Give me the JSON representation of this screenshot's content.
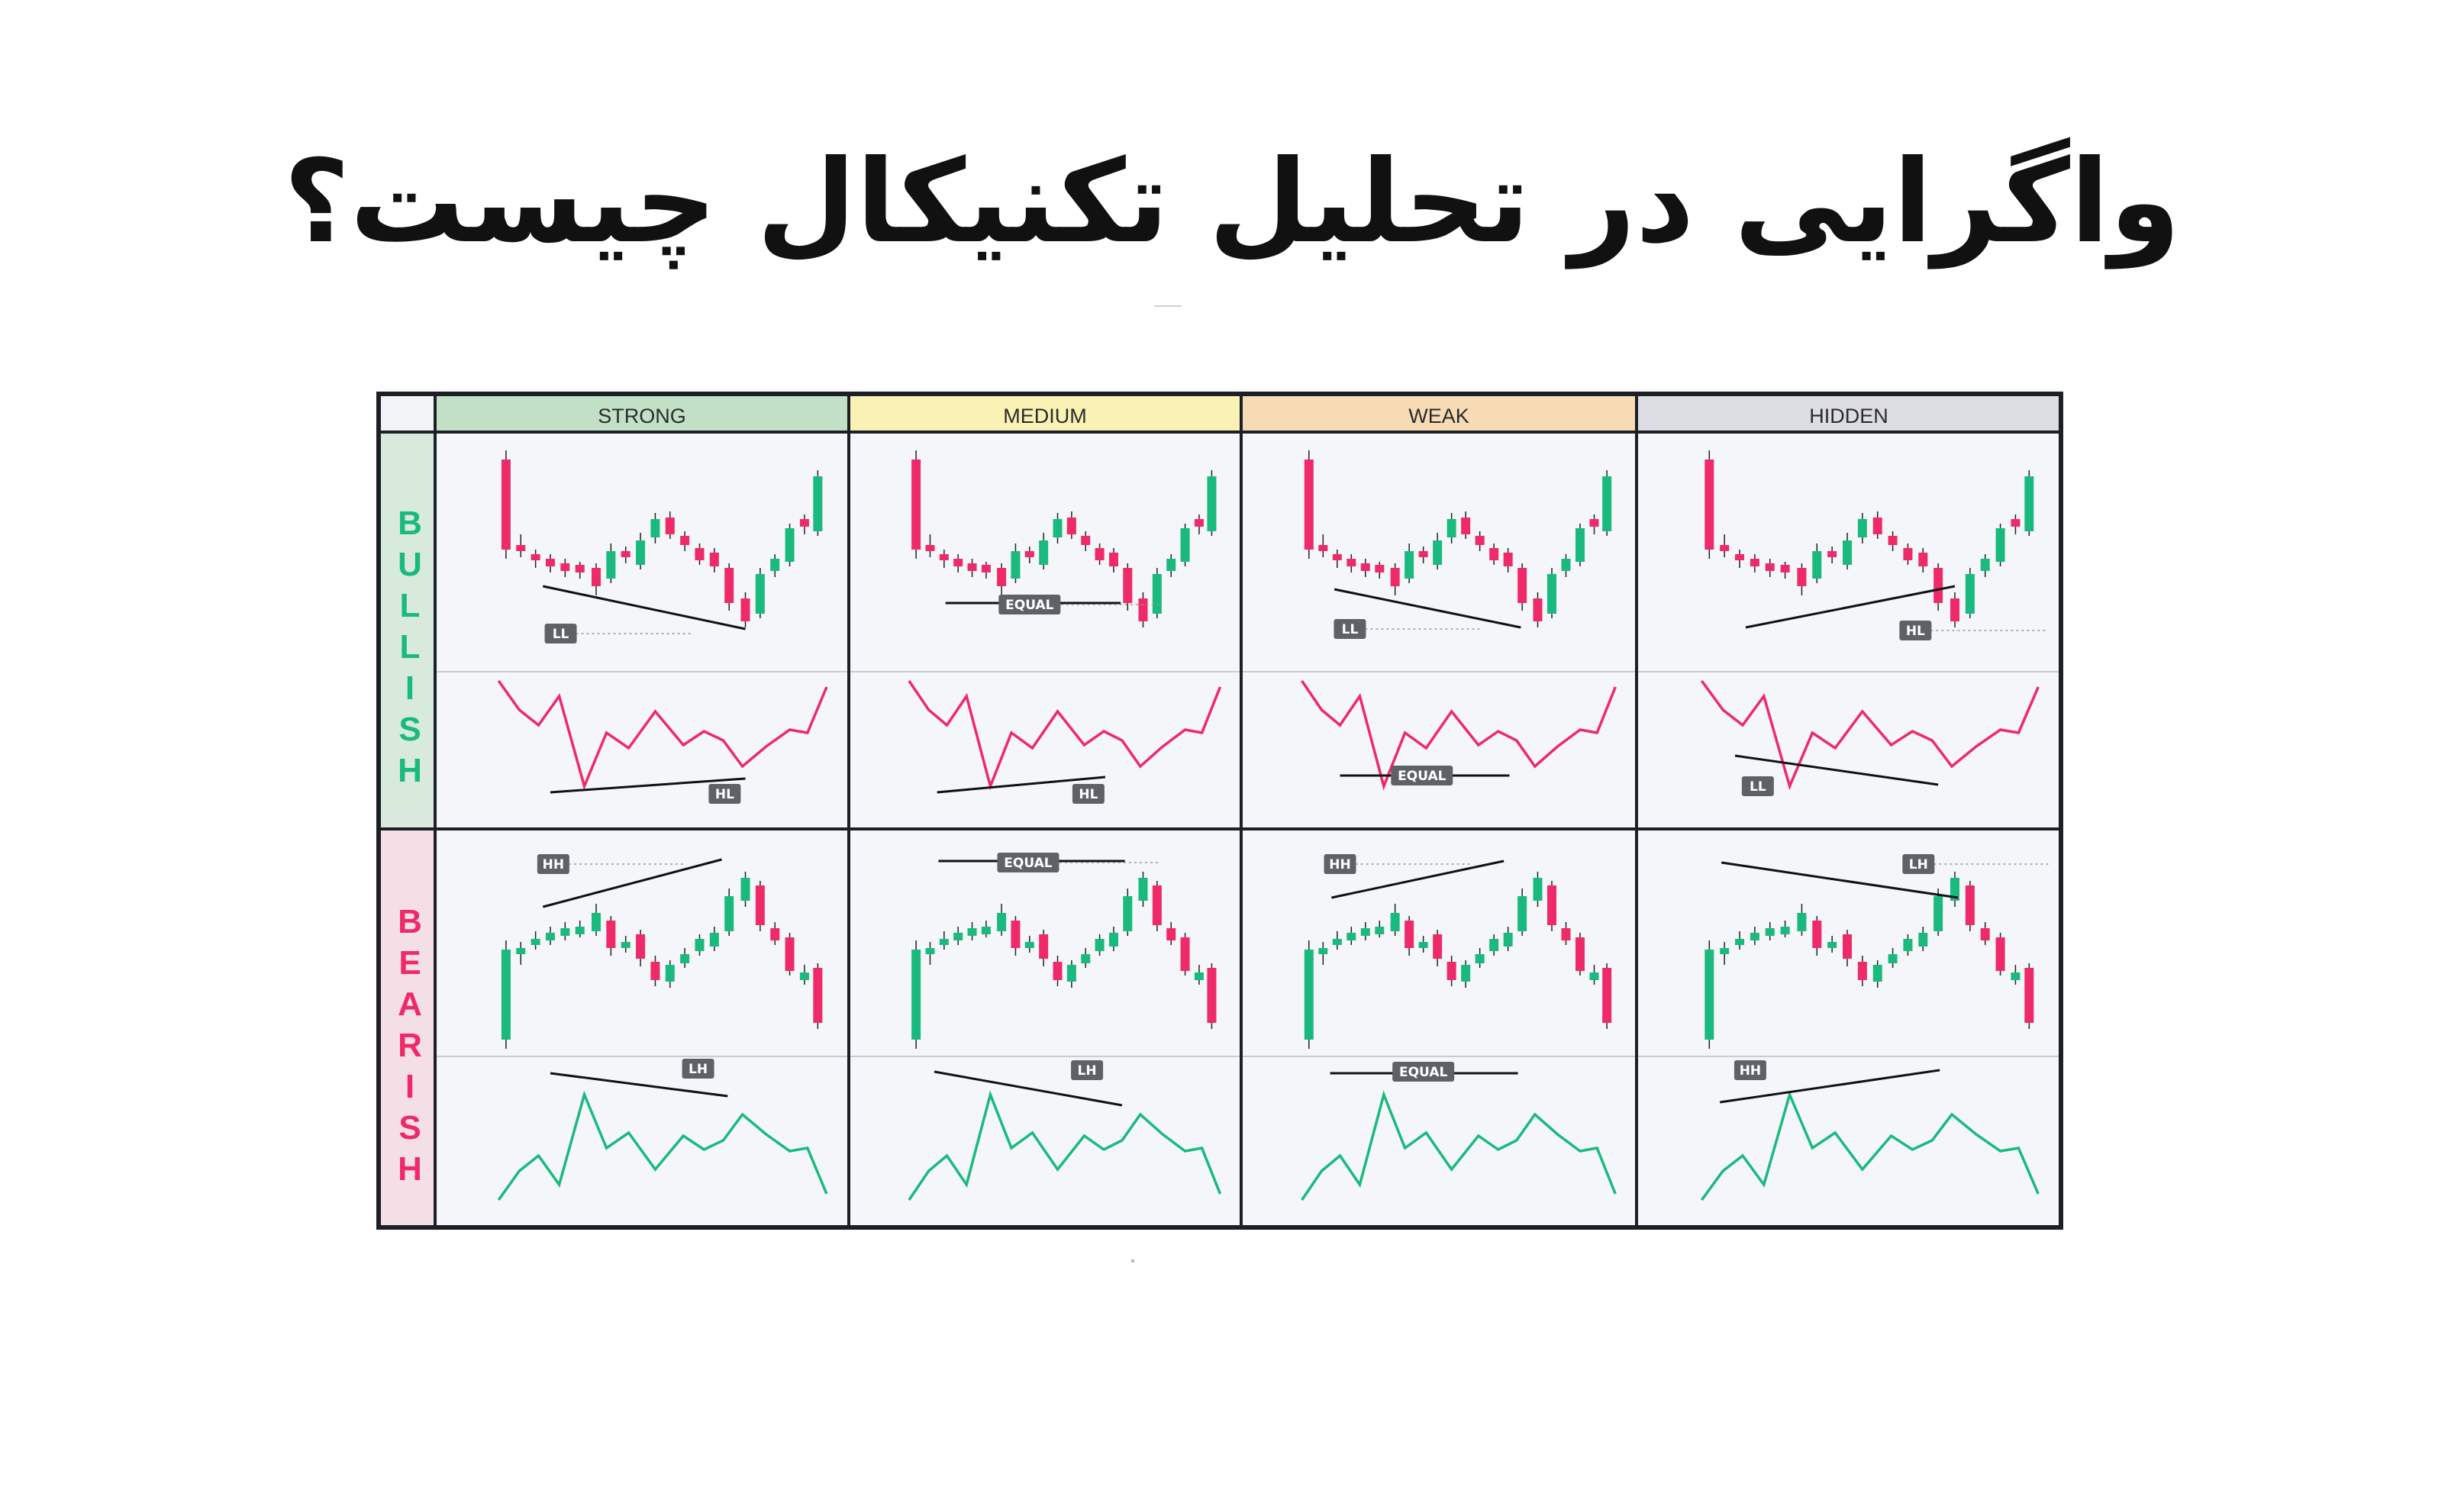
{
  "title": "واگرایی در تحلیل تکنیکال چیست؟",
  "colors": {
    "bull": "#1aba7e",
    "bear": "#ee2a68",
    "border": "#1c2026",
    "cell_bg": "#f4f6f9",
    "tag_bg": "#5e6168",
    "divider": "#c9ccd2"
  },
  "columns": [
    {
      "label": "STRONG",
      "color": "#c2e0c6"
    },
    {
      "label": "MEDIUM",
      "color": "#faf1b4"
    },
    {
      "label": "WEAK",
      "color": "#f6dbb4"
    },
    {
      "label": "HIDDEN",
      "color": "#dcdce3"
    }
  ],
  "rows": [
    {
      "label": "BULLISH",
      "color": "#1aba7e",
      "bg": "#d7eadc"
    },
    {
      "label": "BEARISH",
      "color": "#ee2a68",
      "bg": "#f5dfe7"
    }
  ],
  "cells": [
    [
      {
        "price_tag": "LL",
        "ind_tag": "HL"
      },
      {
        "price_tag": "EQUAL",
        "ind_tag": "HL"
      },
      {
        "price_tag": "LL",
        "ind_tag": "EQUAL"
      },
      {
        "price_tag": "HL",
        "ind_tag": "LL"
      }
    ],
    [
      {
        "price_tag": "HH",
        "ind_tag": "LH"
      },
      {
        "price_tag": "EQUAL",
        "ind_tag": "LH"
      },
      {
        "price_tag": "HH",
        "ind_tag": "EQUAL"
      },
      {
        "price_tag": "LH",
        "ind_tag": "HH"
      }
    ]
  ]
}
